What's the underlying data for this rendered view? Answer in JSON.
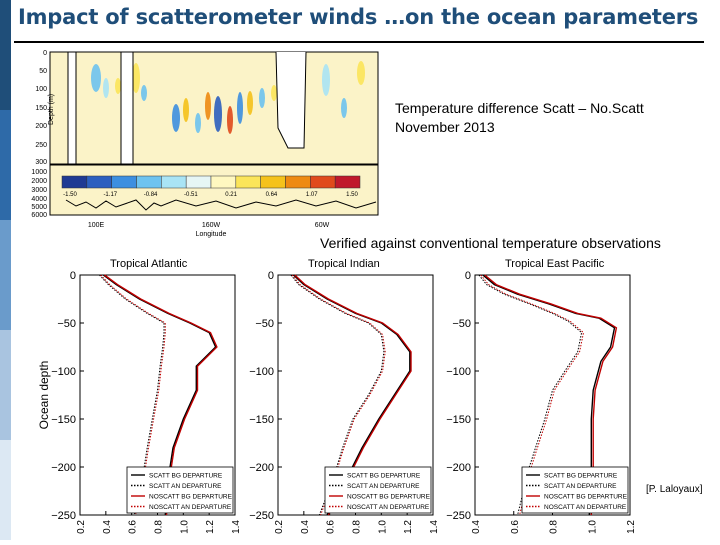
{
  "slide": {
    "title": "Impact of scatterometer winds …on the ocean parameters",
    "caption_line1": "Temperature difference Scatt – No.Scatt",
    "caption_line2": "November 2013",
    "verified_note": "Verified against conventional temperature observations",
    "credit": "[P. Laloyaux]"
  },
  "colors": {
    "title": "#1F4E79",
    "scatt_bg": "#000000",
    "noscatt": "#C00000",
    "section_bg": "#FBF3C8"
  },
  "section_plot": {
    "ylabel": "Depth (m)",
    "xlabel": "Longitude",
    "y_ticks_top": [
      "0",
      "50",
      "100",
      "150",
      "200",
      "250",
      "300"
    ],
    "y_ticks_bottom": [
      "1000",
      "2000",
      "3000",
      "4000",
      "5000",
      "6000"
    ],
    "x_ticks": [
      "100E",
      "160W",
      "60W"
    ],
    "colorbar_labels": [
      "-1.50",
      "-1.17",
      "-0.84",
      "-0.51",
      "0.21",
      "0.64",
      "1.07",
      "1.50"
    ],
    "colorbar_colors": [
      "#1f3a93",
      "#2c5fbf",
      "#3d8fe0",
      "#6ec3ef",
      "#a9e4f5",
      "#e6f6f5",
      "#fff8c0",
      "#fbe55a",
      "#f5c21b",
      "#ee8a12",
      "#e04a1c",
      "#c0192c"
    ]
  },
  "profile_plots": [
    {
      "title": "Tropical Atlantic",
      "ylabel": "Ocean depth",
      "yticks": [
        "0",
        "−50",
        "−100",
        "−150",
        "−200",
        "−250"
      ],
      "xticks": [
        "0.2",
        "0.4",
        "0.6",
        "0.8",
        "1.0",
        "1.2",
        "1.4"
      ]
    },
    {
      "title": "Tropical Indian",
      "ylabel": "",
      "yticks": [
        "0",
        "−50",
        "−100",
        "−150",
        "−200",
        "−250"
      ],
      "xticks": [
        "0.2",
        "0.4",
        "0.6",
        "0.8",
        "1.0",
        "1.2",
        "1.4"
      ]
    },
    {
      "title": "Tropical East Pacific",
      "ylabel": "",
      "yticks": [
        "0",
        "−50",
        "−100",
        "−150",
        "−200",
        "−250"
      ],
      "xticks": [
        "0.4",
        "0.6",
        "0.8",
        "1.0",
        "1.2"
      ]
    }
  ],
  "legend": [
    {
      "label": "SCATT BG DEPARTURE",
      "color": "#000000",
      "style": "solid"
    },
    {
      "label": "SCATT AN DEPARTURE",
      "color": "#000000",
      "style": "dotted"
    },
    {
      "label": "NOSCATT BG DEPARTURE",
      "color": "#C00000",
      "style": "solid"
    },
    {
      "label": "NOSCATT AN DEPARTURE",
      "color": "#C00000",
      "style": "dotted"
    }
  ],
  "chart_data": [
    {
      "type": "line",
      "title": "Tropical Atlantic",
      "ylabel": "Ocean depth",
      "xlim": [
        0.2,
        1.4
      ],
      "ylim": [
        -250,
        0
      ],
      "series": [
        {
          "name": "SCATT BG DEPARTURE",
          "x": [
            0.38,
            0.48,
            0.66,
            0.88,
            1.05,
            1.2,
            1.25,
            1.1,
            1.1,
            1.0,
            0.92,
            0.88,
            0.86
          ],
          "y": [
            0,
            -10,
            -25,
            -40,
            -50,
            -60,
            -75,
            -95,
            -120,
            -150,
            -180,
            -215,
            -250
          ]
        },
        {
          "name": "SCATT AN DEPARTURE",
          "x": [
            0.35,
            0.42,
            0.55,
            0.72,
            0.85,
            0.85,
            0.84,
            0.82,
            0.8,
            0.76,
            0.72,
            0.68,
            0.62
          ],
          "y": [
            0,
            -10,
            -25,
            -40,
            -50,
            -60,
            -75,
            -95,
            -120,
            -150,
            -180,
            -215,
            -250
          ]
        },
        {
          "name": "NOSCATT BG DEPARTURE",
          "x": [
            0.39,
            0.49,
            0.67,
            0.89,
            1.06,
            1.21,
            1.26,
            1.11,
            1.11,
            1.01,
            0.93,
            0.89,
            0.87
          ],
          "y": [
            0,
            -10,
            -25,
            -40,
            -50,
            -60,
            -75,
            -95,
            -120,
            -150,
            -180,
            -215,
            -250
          ]
        },
        {
          "name": "NOSCATT AN DEPARTURE",
          "x": [
            0.36,
            0.43,
            0.56,
            0.73,
            0.86,
            0.86,
            0.85,
            0.83,
            0.81,
            0.77,
            0.73,
            0.69,
            0.63
          ],
          "y": [
            0,
            -10,
            -25,
            -40,
            -50,
            -60,
            -75,
            -95,
            -120,
            -150,
            -180,
            -215,
            -250
          ]
        }
      ]
    },
    {
      "type": "line",
      "title": "Tropical Indian",
      "xlim": [
        0.2,
        1.4
      ],
      "ylim": [
        -250,
        0
      ],
      "series": [
        {
          "name": "SCATT BG DEPARTURE",
          "x": [
            0.32,
            0.4,
            0.58,
            0.8,
            1.0,
            1.12,
            1.22,
            1.22,
            1.1,
            0.98,
            0.85,
            0.72,
            0.58
          ],
          "y": [
            0,
            -10,
            -25,
            -40,
            -50,
            -62,
            -80,
            -100,
            -125,
            -150,
            -180,
            -215,
            -250
          ]
        },
        {
          "name": "SCATT AN DEPARTURE",
          "x": [
            0.3,
            0.36,
            0.52,
            0.72,
            0.9,
            1.0,
            1.02,
            1.0,
            0.9,
            0.78,
            0.7,
            0.62,
            0.52
          ],
          "y": [
            0,
            -10,
            -25,
            -40,
            -50,
            -62,
            -80,
            -100,
            -125,
            -150,
            -180,
            -215,
            -250
          ]
        },
        {
          "name": "NOSCATT BG DEPARTURE",
          "x": [
            0.33,
            0.41,
            0.59,
            0.81,
            1.01,
            1.13,
            1.23,
            1.23,
            1.11,
            0.99,
            0.86,
            0.73,
            0.59
          ],
          "y": [
            0,
            -10,
            -25,
            -40,
            -50,
            -62,
            -80,
            -100,
            -125,
            -150,
            -180,
            -215,
            -250
          ]
        },
        {
          "name": "NOSCATT AN DEPARTURE",
          "x": [
            0.31,
            0.37,
            0.53,
            0.73,
            0.91,
            1.01,
            1.03,
            1.01,
            0.91,
            0.79,
            0.71,
            0.63,
            0.53
          ],
          "y": [
            0,
            -10,
            -25,
            -40,
            -50,
            -62,
            -80,
            -100,
            -125,
            -150,
            -180,
            -215,
            -250
          ]
        }
      ]
    },
    {
      "type": "line",
      "title": "Tropical East Pacific",
      "xlim": [
        0.4,
        1.2
      ],
      "ylim": [
        -250,
        0
      ],
      "series": [
        {
          "name": "SCATT BG DEPARTURE",
          "x": [
            0.44,
            0.5,
            0.62,
            0.78,
            0.92,
            1.04,
            1.12,
            1.1,
            1.05,
            1.01,
            1.0,
            1.0,
            0.99
          ],
          "y": [
            0,
            -10,
            -20,
            -30,
            -40,
            -45,
            -55,
            -75,
            -90,
            -120,
            -150,
            -200,
            -250
          ]
        },
        {
          "name": "SCATT AN DEPARTURE",
          "x": [
            0.42,
            0.46,
            0.55,
            0.68,
            0.8,
            0.88,
            0.95,
            0.93,
            0.88,
            0.8,
            0.76,
            0.68,
            0.62
          ],
          "y": [
            0,
            -10,
            -20,
            -30,
            -40,
            -48,
            -60,
            -80,
            -95,
            -120,
            -150,
            -200,
            -250
          ]
        },
        {
          "name": "NOSCATT BG DEPARTURE",
          "x": [
            0.45,
            0.51,
            0.63,
            0.79,
            0.93,
            1.05,
            1.13,
            1.11,
            1.06,
            1.02,
            1.01,
            1.01,
            1.0
          ],
          "y": [
            0,
            -10,
            -20,
            -30,
            -40,
            -45,
            -55,
            -75,
            -90,
            -120,
            -150,
            -200,
            -250
          ]
        },
        {
          "name": "NOSCATT AN DEPARTURE",
          "x": [
            0.43,
            0.47,
            0.56,
            0.69,
            0.81,
            0.89,
            0.96,
            0.94,
            0.89,
            0.81,
            0.77,
            0.69,
            0.63
          ],
          "y": [
            0,
            -10,
            -20,
            -30,
            -40,
            -48,
            -60,
            -80,
            -95,
            -120,
            -150,
            -200,
            -250
          ]
        }
      ]
    }
  ]
}
